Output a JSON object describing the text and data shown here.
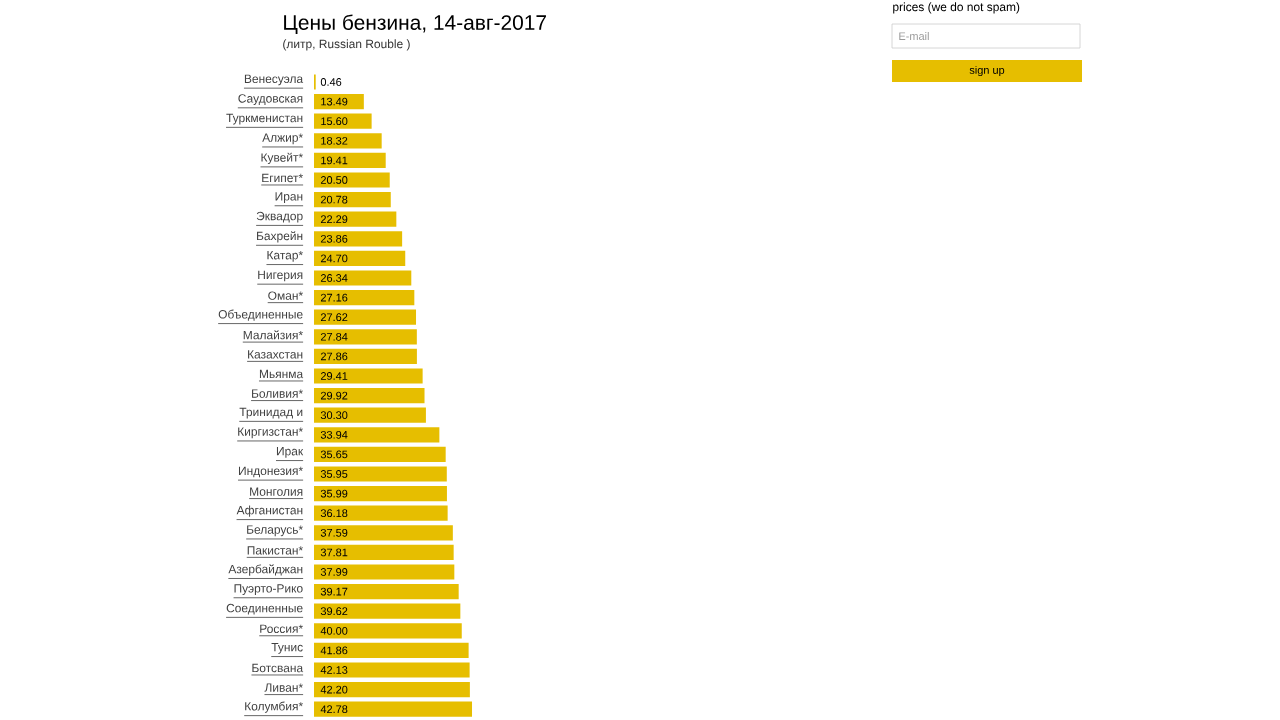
{
  "chart_data": {
    "type": "bar",
    "orientation": "horizontal",
    "title": "Цены бензина, 14-авг-2017",
    "subtitle": "(литр, Russian Rouble )",
    "categories": [
      "Венесуэла",
      "Саудовская",
      "Туркменистан",
      "Алжир*",
      "Кувейт*",
      "Египет*",
      "Иран",
      "Эквадор",
      "Бахрейн",
      "Катар*",
      "Нигерия",
      "Оман*",
      "Объединенные",
      "Малайзия*",
      "Казахстан",
      "Мьянма",
      "Боливия*",
      "Тринидад и",
      "Киргизстан*",
      "Ирак",
      "Индонезия*",
      "Монголия",
      "Афганистан",
      "Беларусь*",
      "Пакистан*",
      "Азербайджан",
      "Пуэрто-Рико",
      "Соединенные",
      "Россия*",
      "Тунис",
      "Ботсвана",
      "Ливан*",
      "Колумбия*"
    ],
    "values": [
      0.46,
      13.49,
      15.6,
      18.32,
      19.41,
      20.5,
      20.78,
      22.29,
      23.86,
      24.7,
      26.34,
      27.16,
      27.62,
      27.84,
      27.86,
      29.41,
      29.92,
      30.3,
      33.94,
      35.65,
      35.95,
      35.99,
      36.18,
      37.59,
      37.81,
      37.99,
      39.17,
      39.62,
      40.0,
      41.86,
      42.13,
      42.2,
      42.78
    ],
    "value_labels": [
      "0.46",
      "13.49",
      "15.60",
      "18.32",
      "19.41",
      "20.50",
      "20.78",
      "22.29",
      "23.86",
      "24.70",
      "26.34",
      "27.16",
      "27.62",
      "27.84",
      "27.86",
      "29.41",
      "29.92",
      "30.30",
      "33.94",
      "35.65",
      "35.95",
      "35.99",
      "36.18",
      "37.59",
      "37.81",
      "37.99",
      "39.17",
      "39.62",
      "40.00",
      "41.86",
      "42.13",
      "42.20",
      "42.78"
    ],
    "color": "#e6be00",
    "annotations": [
      "prices (we do not spam)",
      "E-mail",
      "sign up"
    ]
  }
}
